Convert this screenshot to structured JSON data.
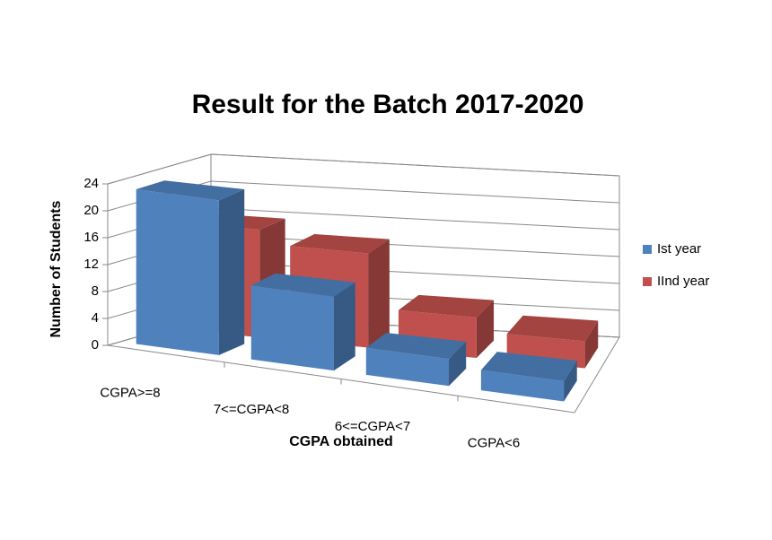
{
  "chart_data": {
    "type": "bar3d",
    "title": "Result for the Batch 2017-2020",
    "x_label": "CGPA obtained",
    "y_label": "Number of Students",
    "categories": [
      "CGPA>=8",
      "7<=CGPA<8",
      "6<=CGPA<7",
      "CGPA<6"
    ],
    "series": [
      {
        "name": "Ist year",
        "color": "#4f81bd",
        "values": [
          23,
          11,
          4,
          3
        ]
      },
      {
        "name": "IInd year",
        "color": "#c0504d",
        "values": [
          16,
          14,
          6,
          4
        ]
      }
    ],
    "ylim": [
      0,
      24
    ],
    "yticks": [
      0,
      4,
      8,
      12,
      16,
      20,
      24
    ],
    "grid": true,
    "legend": "right"
  }
}
